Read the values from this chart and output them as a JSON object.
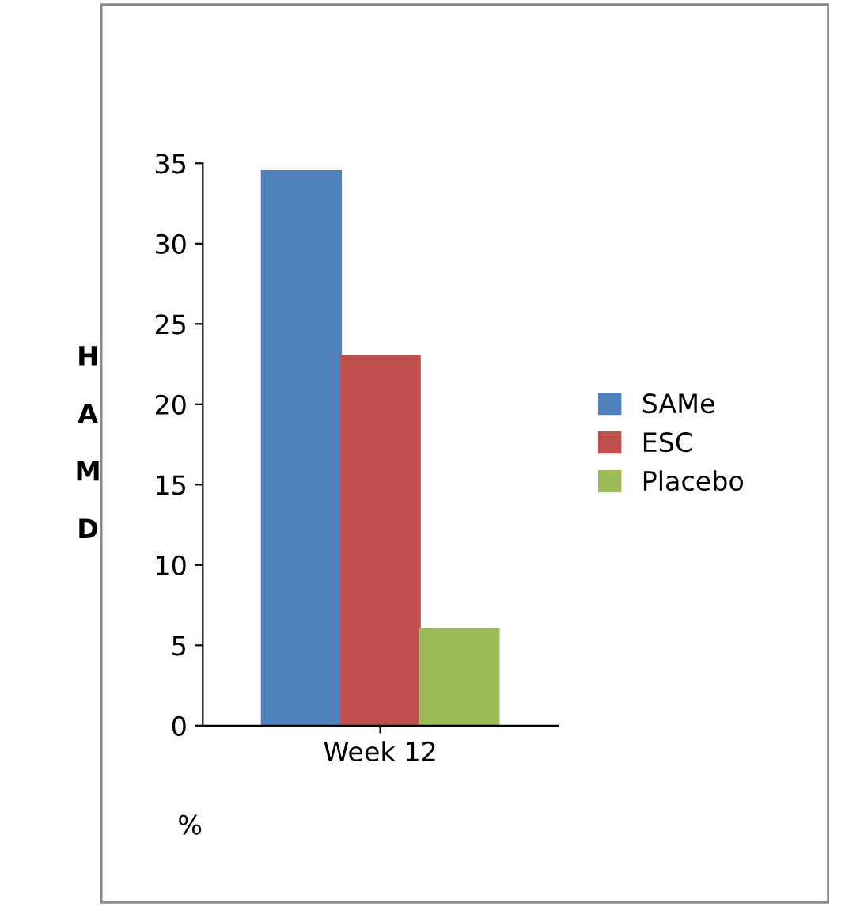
{
  "chart_data": {
    "type": "bar",
    "ylabel": "HAMD",
    "categories": [
      "Week 12"
    ],
    "series": [
      {
        "name": "SAMe",
        "color": "#4f81bd",
        "values": [
          34.5
        ]
      },
      {
        "name": "ESC",
        "color": "#c0504d",
        "values": [
          23
        ]
      },
      {
        "name": "Placebo",
        "color": "#9bbb59",
        "values": [
          6
        ]
      }
    ],
    "ylim": [
      0,
      35
    ],
    "yticks": [
      0,
      5,
      10,
      15,
      20,
      25,
      30,
      35
    ],
    "grid": false,
    "legend": "right",
    "annotations": [
      "%"
    ]
  }
}
